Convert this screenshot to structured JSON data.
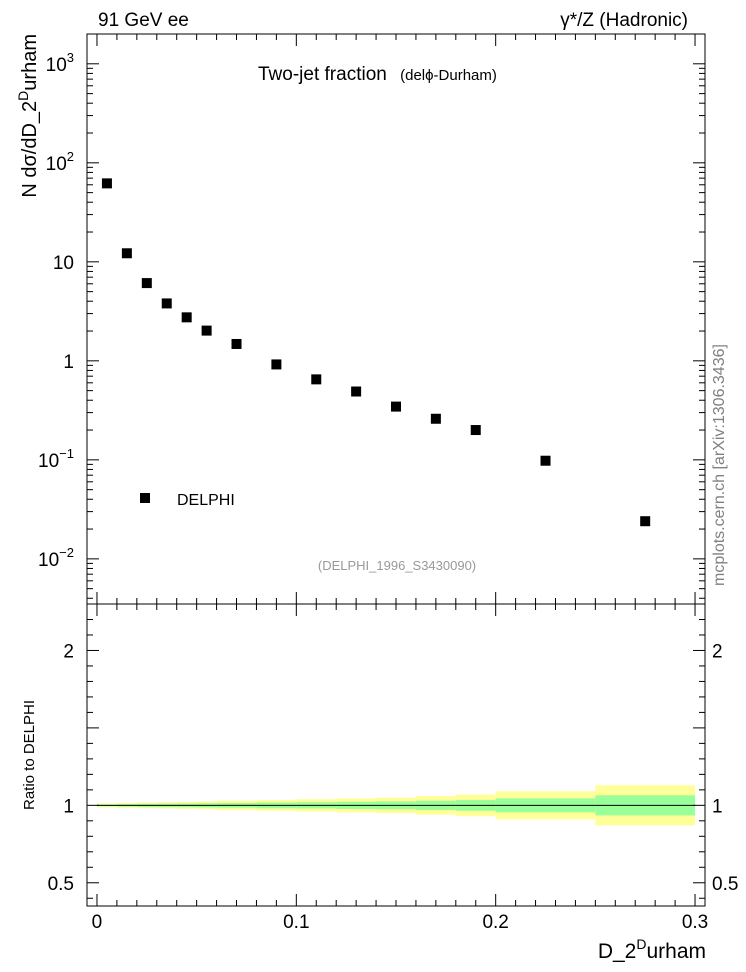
{
  "header": {
    "energy_label": "91 GeV ee",
    "process_label": "γ*/Z (Hadronic)"
  },
  "watermark": "mcplots.cern.ch [arXiv:1306.3436]",
  "chart_data": [
    {
      "type": "scatter",
      "title": "Two-jet fraction",
      "title_suffix": "(delϕ-Durham)",
      "analysis_id": "(DELPHI_1996_S3430090)",
      "ylabel": "N dσ/dD_2^Durham",
      "ylabel_main": "N dσ/dD_2",
      "ylabel_sup": "D",
      "ylabel_tail": "urham",
      "yscale": "log",
      "ylim": [
        0.0035,
        2000
      ],
      "xlim": [
        -0.005,
        0.305
      ],
      "grid": false,
      "legend_position": "left",
      "legend": [
        {
          "name": "DELPHI",
          "marker": "square",
          "color": "#000000"
        }
      ],
      "y_ticks": [
        {
          "value": 1000,
          "base": "10",
          "exp": "3",
          "text": ""
        },
        {
          "value": 100,
          "base": "10",
          "exp": "2",
          "text": ""
        },
        {
          "value": 10,
          "base": "",
          "exp": "",
          "text": "10"
        },
        {
          "value": 1,
          "base": "",
          "exp": "",
          "text": "1"
        },
        {
          "value": 0.1,
          "base": "10",
          "exp": "−1",
          "text": ""
        },
        {
          "value": 0.01,
          "base": "10",
          "exp": "−2",
          "text": ""
        }
      ],
      "series": [
        {
          "name": "DELPHI",
          "x": [
            0.005,
            0.015,
            0.025,
            0.035,
            0.045,
            0.055,
            0.07,
            0.09,
            0.11,
            0.13,
            0.15,
            0.17,
            0.19,
            0.225,
            0.275
          ],
          "y": [
            62,
            12.2,
            6.1,
            3.8,
            2.75,
            2.02,
            1.48,
            0.92,
            0.65,
            0.49,
            0.345,
            0.26,
            0.2,
            0.098,
            0.024
          ]
        }
      ]
    },
    {
      "type": "area",
      "ylabel": "Ratio to DELPHI",
      "ylim": [
        0.35,
        2.3
      ],
      "xlim": [
        -0.005,
        0.305
      ],
      "xlabel_main": "D_2",
      "xlabel_sup": "D",
      "xlabel_tail": "urham",
      "x_ticks": [
        "0",
        "0.1",
        "0.2",
        "0.3"
      ],
      "x_tick_values": [
        0,
        0.1,
        0.2,
        0.3
      ],
      "y_ticks": [
        "2",
        "1",
        "0.5"
      ],
      "y_tick_values": [
        2,
        1,
        0.5
      ],
      "reference_line": 1,
      "bands": {
        "x_edges": [
          0,
          0.01,
          0.02,
          0.03,
          0.04,
          0.05,
          0.06,
          0.08,
          0.1,
          0.12,
          0.14,
          0.16,
          0.18,
          0.2,
          0.25,
          0.3
        ],
        "outer_color": "#ffff99",
        "inner_color": "#99ff99",
        "outer_halfwidth": [
          0.012,
          0.015,
          0.018,
          0.02,
          0.022,
          0.025,
          0.03,
          0.035,
          0.04,
          0.045,
          0.05,
          0.06,
          0.07,
          0.09,
          0.13
        ],
        "inner_halfwidth": [
          0.006,
          0.008,
          0.01,
          0.011,
          0.012,
          0.013,
          0.015,
          0.018,
          0.02,
          0.023,
          0.025,
          0.03,
          0.035,
          0.045,
          0.065
        ]
      }
    }
  ]
}
